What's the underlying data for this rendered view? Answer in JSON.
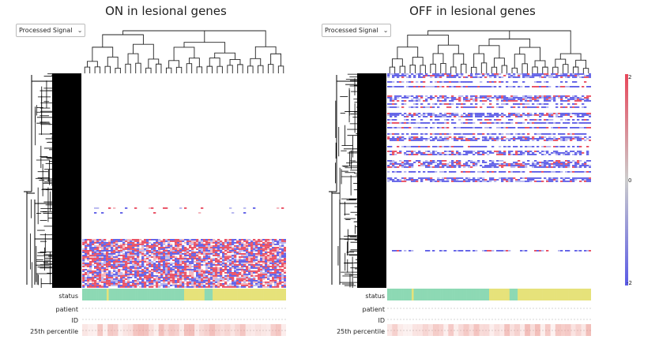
{
  "panels": [
    {
      "title": "ON in lesional genes",
      "dropdown": {
        "selected": "Processed Signal"
      },
      "annotation_rows": [
        "status",
        "patient",
        "ID",
        "25th percentile"
      ]
    },
    {
      "title": "OFF in lesional genes",
      "dropdown": {
        "selected": "Processed Signal"
      },
      "annotation_rows": [
        "status",
        "patient",
        "ID",
        "25th percentile"
      ]
    }
  ],
  "colorbar": {
    "max_label": "2",
    "mid_label": "0",
    "min_label": "-2",
    "colors": [
      "#e8475b",
      "#cccccc",
      "#5a5ae6"
    ]
  },
  "status_colors": {
    "green": "#8dd9b4",
    "yellow": "#e6e27a"
  },
  "status_pattern": [
    "g",
    "g",
    "g",
    "g",
    "g",
    "g",
    "g",
    "g",
    "g",
    "g",
    "g",
    "g",
    "y",
    "g",
    "g",
    "g",
    "g",
    "g",
    "g",
    "g",
    "g",
    "g",
    "g",
    "g",
    "g",
    "g",
    "g",
    "g",
    "g",
    "g",
    "g",
    "g",
    "g",
    "g",
    "g",
    "g",
    "g",
    "g",
    "g",
    "g",
    "g",
    "g",
    "g",
    "g",
    "g",
    "g",
    "g",
    "g",
    "g",
    "g",
    "y",
    "y",
    "y",
    "y",
    "y",
    "y",
    "y",
    "y",
    "y",
    "y",
    "g",
    "g",
    "g",
    "g",
    "y",
    "y",
    "y",
    "y",
    "y",
    "y",
    "y",
    "y",
    "y",
    "y",
    "y",
    "y",
    "y",
    "y",
    "y",
    "y",
    "y",
    "y",
    "y",
    "y",
    "y",
    "y",
    "y",
    "y",
    "y",
    "y",
    "y",
    "y",
    "y",
    "y",
    "y",
    "y",
    "y",
    "y",
    "y",
    "y"
  ]
}
